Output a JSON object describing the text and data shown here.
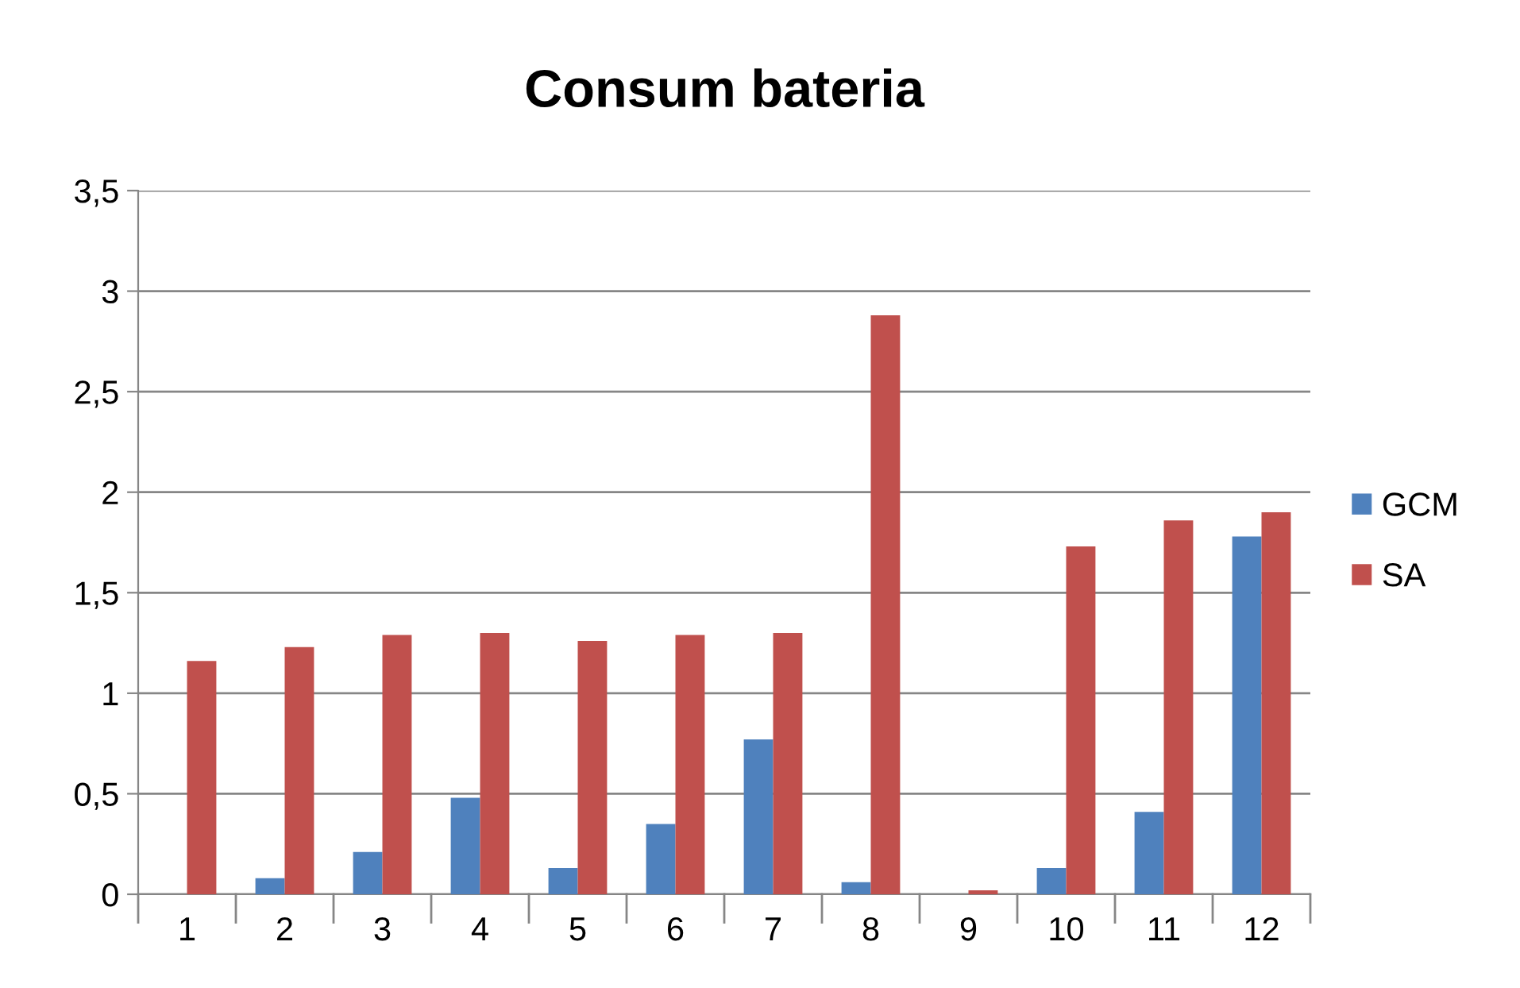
{
  "chart_data": {
    "type": "bar",
    "title": "Consum bateria",
    "categories": [
      "1",
      "2",
      "3",
      "4",
      "5",
      "6",
      "7",
      "8",
      "9",
      "10",
      "11",
      "12"
    ],
    "series": [
      {
        "name": "GCM",
        "color": "#4f81bd",
        "values": [
          0,
          0.08,
          0.21,
          0.48,
          0.13,
          0.35,
          0.77,
          0.06,
          0,
          0.13,
          0.41,
          1.78
        ]
      },
      {
        "name": "SA",
        "color": "#c0504d",
        "values": [
          1.16,
          1.23,
          1.29,
          1.3,
          1.26,
          1.29,
          1.3,
          2.88,
          0.02,
          1.73,
          1.86,
          1.9
        ]
      }
    ],
    "ylim": [
      0,
      3.5
    ],
    "yticks": [
      0,
      {
        "value": 0.5,
        "label": "0,5"
      },
      1,
      {
        "value": 1.5,
        "label": "1,5"
      },
      2,
      {
        "value": 2.5,
        "label": "2,5"
      },
      3,
      {
        "value": 3.5,
        "label": "3,5"
      }
    ],
    "grid": "y",
    "legend": "right"
  }
}
